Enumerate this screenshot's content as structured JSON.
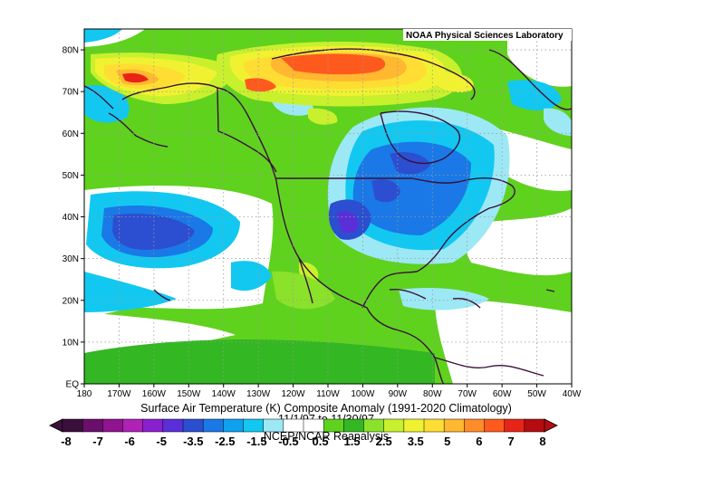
{
  "map": {
    "credit": "NOAA Physical Sciences Laboratory",
    "title_line1": "Surface Air Temperature (K) Composite Anomaly (1991-2020 Climatology)",
    "title_line2": "11/1/97 to 11/30/97",
    "title_line3": "NCEP/NCAR Reanalysis",
    "lat_ticks": [
      "80N",
      "70N",
      "60N",
      "50N",
      "40N",
      "30N",
      "20N",
      "10N",
      "EQ"
    ],
    "lon_ticks": [
      "180",
      "170W",
      "160W",
      "150W",
      "140W",
      "130W",
      "120W",
      "110W",
      "100W",
      "90W",
      "80W",
      "70W",
      "60W",
      "50W",
      "40W"
    ],
    "lon_range_deg": [
      -180,
      -40
    ],
    "lat_range_deg": [
      0,
      85
    ],
    "grid": true
  },
  "colorbar": {
    "labels": [
      "-8",
      "-7",
      "-6",
      "-5",
      "-3.5",
      "-2.5",
      "-1.5",
      "-0.5",
      "0.5",
      "1.5",
      "2.5",
      "3.5",
      "5",
      "6",
      "7",
      "8"
    ],
    "colors": [
      "#3b0f3c",
      "#6a0f6b",
      "#90148f",
      "#b021b5",
      "#8a1fd0",
      "#5b2fd8",
      "#2b4fd0",
      "#1a79e6",
      "#0ea1f0",
      "#12c8f0",
      "#9de8f5",
      "#ffffff",
      "#ffffff",
      "#5fd21e",
      "#33b722",
      "#8ae22a",
      "#c8f02d",
      "#f0f231",
      "#ffdd33",
      "#ffb830",
      "#ff8c28",
      "#ff5a1e",
      "#e82418",
      "#b40c10"
    ]
  },
  "colors": {
    "land_outline": "#3a0f3a",
    "grid_line": "#9a9a9a",
    "background": "#ffffff"
  }
}
